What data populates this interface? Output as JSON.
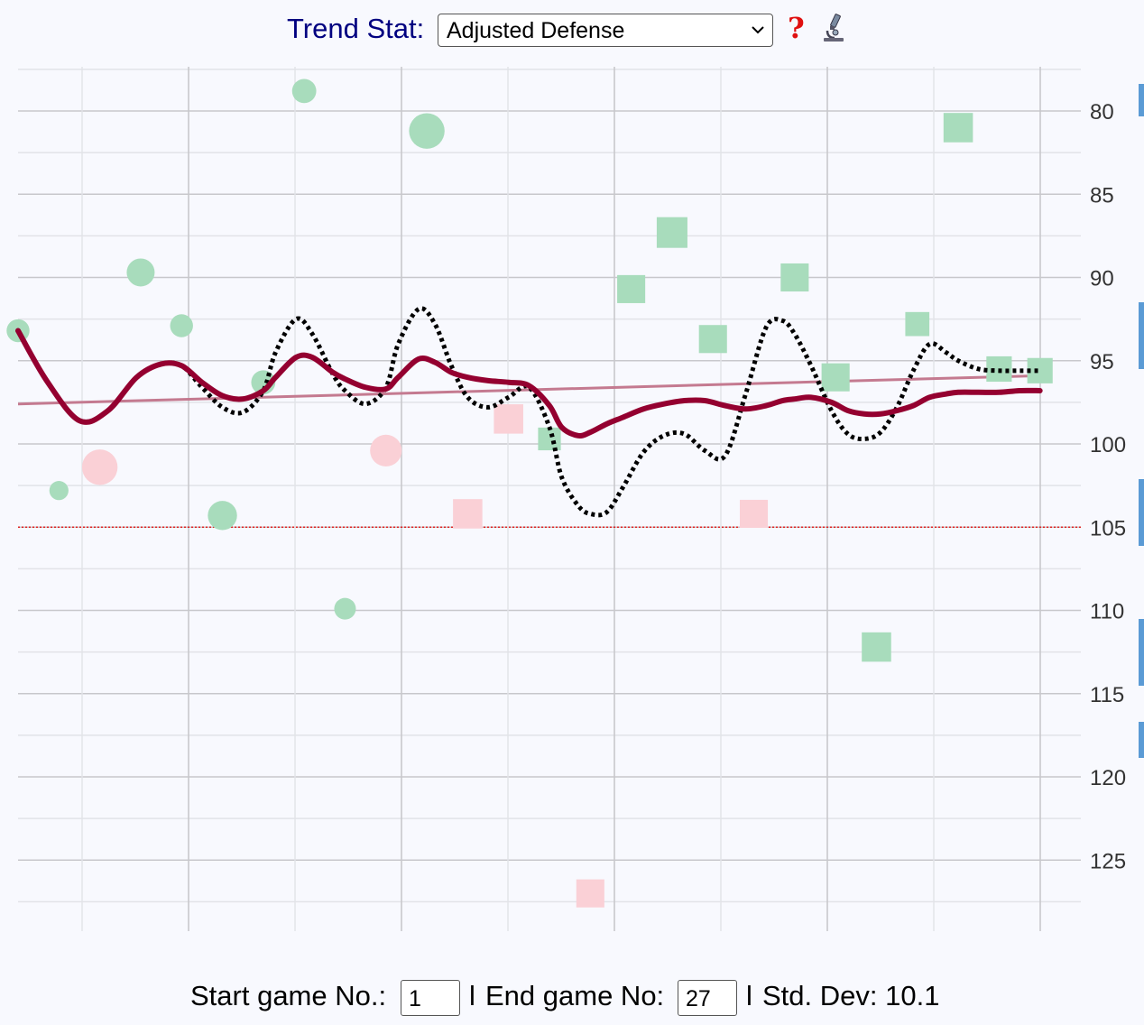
{
  "header": {
    "label": "Trend Stat:",
    "selected_stat": "Adjusted Defense",
    "help_icon": "question-mark-icon",
    "help_glyph": "?",
    "lab_icon": "microscope-icon"
  },
  "footer": {
    "start_label": "Start game No.:",
    "start_value": "1",
    "separator1": "l",
    "end_label": "End game No:",
    "end_value": "27",
    "separator2": "l",
    "stddev_label": "Std. Dev: 10.1"
  },
  "colors": {
    "win": "#a8dcbc",
    "loss": "#fad0d6",
    "trend_solid": "#940030",
    "trend_dotted": "#000000",
    "regression": "#c47a90",
    "reference_line": "#dd2222"
  },
  "chart_data": {
    "type": "scatter",
    "y_axis_inverted": true,
    "ylim": [
      77.5,
      129.5
    ],
    "y_ticks": [
      80,
      85,
      90,
      95,
      100,
      105,
      110,
      115,
      120,
      125
    ],
    "x_range": [
      1,
      27
    ],
    "reference_line_y": 105,
    "points": [
      {
        "game": 1,
        "value": 93.2,
        "shape": "circle",
        "result": "win",
        "size": 1.1
      },
      {
        "game": 2,
        "value": 102.8,
        "shape": "circle",
        "result": "win",
        "size": 0.8
      },
      {
        "game": 3,
        "value": 101.4,
        "shape": "circle",
        "result": "loss",
        "size": 2.1
      },
      {
        "game": 4,
        "value": 89.7,
        "shape": "circle",
        "result": "win",
        "size": 1.5
      },
      {
        "game": 5,
        "value": 92.9,
        "shape": "circle",
        "result": "win",
        "size": 1.1
      },
      {
        "game": 6,
        "value": 104.3,
        "shape": "circle",
        "result": "win",
        "size": 1.6
      },
      {
        "game": 7,
        "value": 96.3,
        "shape": "circle",
        "result": "win",
        "size": 1.2
      },
      {
        "game": 8,
        "value": 78.8,
        "shape": "circle",
        "result": "win",
        "size": 1.2
      },
      {
        "game": 9,
        "value": 109.9,
        "shape": "circle",
        "result": "win",
        "size": 1.0
      },
      {
        "game": 10,
        "value": 100.4,
        "shape": "circle",
        "result": "loss",
        "size": 1.8
      },
      {
        "game": 11,
        "value": 81.2,
        "shape": "circle",
        "result": "win",
        "size": 2.1
      },
      {
        "game": 12,
        "value": 104.2,
        "shape": "square",
        "result": "loss",
        "size": 1.5
      },
      {
        "game": 13,
        "value": 98.5,
        "shape": "square",
        "result": "loss",
        "size": 1.5
      },
      {
        "game": 14,
        "value": 99.7,
        "shape": "square",
        "result": "win",
        "size": 1.0
      },
      {
        "game": 15,
        "value": 127.0,
        "shape": "square",
        "result": "loss",
        "size": 1.4
      },
      {
        "game": 16,
        "value": 90.7,
        "shape": "square",
        "result": "win",
        "size": 1.4
      },
      {
        "game": 17,
        "value": 87.3,
        "shape": "square",
        "result": "win",
        "size": 1.6
      },
      {
        "game": 18,
        "value": 93.7,
        "shape": "square",
        "result": "win",
        "size": 1.4
      },
      {
        "game": 19,
        "value": 104.2,
        "shape": "square",
        "result": "loss",
        "size": 1.4
      },
      {
        "game": 20,
        "value": 90.0,
        "shape": "square",
        "result": "win",
        "size": 1.4
      },
      {
        "game": 21,
        "value": 96.0,
        "shape": "square",
        "result": "win",
        "size": 1.4
      },
      {
        "game": 22,
        "value": 112.2,
        "shape": "square",
        "result": "win",
        "size": 1.5
      },
      {
        "game": 23,
        "value": 92.8,
        "shape": "square",
        "result": "win",
        "size": 1.1
      },
      {
        "game": 24,
        "value": 81.0,
        "shape": "square",
        "result": "win",
        "size": 1.5
      },
      {
        "game": 25,
        "value": 95.5,
        "shape": "square",
        "result": "win",
        "size": 1.2
      },
      {
        "game": 26,
        "value": 95.6,
        "shape": "square",
        "result": "win",
        "size": 1.2
      }
    ],
    "series": [
      {
        "style": "dotted",
        "x": [
          1,
          1.7,
          2.5,
          3.2,
          3.9,
          4.5,
          5,
          5.5,
          6,
          6.5,
          7,
          7.3,
          7.8,
          8.2,
          8.7,
          9,
          9.5,
          10,
          10.3,
          10.8,
          11.2,
          11.6,
          12,
          12.5,
          13,
          13.5,
          14,
          14.3,
          14.7,
          15,
          15.4,
          15.8,
          16.3,
          16.8,
          17.3,
          17.8,
          18.3,
          18.8,
          19.3,
          19.7,
          20,
          20.4,
          20.9,
          21.3,
          21.7,
          22.1,
          22.5,
          22.9,
          23.3,
          23.7,
          24,
          24.5,
          25,
          25.5,
          26
        ],
        "y": [
          93.2,
          96.2,
          98.6,
          98.0,
          96.0,
          95.2,
          95.3,
          96.6,
          97.8,
          98.1,
          96.8,
          94.5,
          92.5,
          93.4,
          95.8,
          96.8,
          97.6,
          96.6,
          94.0,
          91.9,
          92.8,
          95.3,
          97.2,
          97.8,
          97.2,
          96.6,
          99.0,
          102.0,
          103.7,
          104.2,
          104.1,
          102.6,
          100.5,
          99.5,
          99.4,
          100.4,
          100.7,
          97.0,
          93.0,
          92.6,
          93.4,
          95.3,
          98.0,
          99.4,
          99.7,
          99.3,
          97.8,
          95.6,
          94.0,
          94.5,
          95.0,
          95.5,
          95.6,
          95.6,
          95.6
        ]
      },
      {
        "style": "solid",
        "x": [
          1,
          1.7,
          2.5,
          3.2,
          3.9,
          4.5,
          5,
          5.5,
          6,
          6.5,
          7,
          7.3,
          7.8,
          8.2,
          8.7,
          9,
          9.5,
          10,
          10.3,
          10.8,
          11.2,
          11.6,
          12,
          12.5,
          13,
          13.5,
          14,
          14.3,
          14.7,
          15,
          15.4,
          15.8,
          16.3,
          16.8,
          17.3,
          17.8,
          18.3,
          18.8,
          19.3,
          19.7,
          20,
          20.4,
          20.9,
          21.3,
          21.7,
          22.1,
          22.5,
          22.9,
          23.3,
          23.7,
          24,
          24.5,
          25,
          25.5,
          26
        ],
        "y": [
          93.2,
          96.2,
          98.6,
          98.0,
          96.0,
          95.2,
          95.3,
          96.3,
          97.1,
          97.3,
          96.8,
          96.0,
          94.8,
          94.8,
          95.7,
          96.1,
          96.6,
          96.7,
          96.0,
          94.9,
          95.1,
          95.7,
          96.0,
          96.2,
          96.3,
          96.5,
          97.7,
          99.0,
          99.5,
          99.3,
          98.8,
          98.4,
          97.9,
          97.6,
          97.4,
          97.4,
          97.7,
          97.9,
          97.7,
          97.4,
          97.3,
          97.2,
          97.5,
          98.0,
          98.2,
          98.2,
          98.0,
          97.7,
          97.2,
          97.0,
          96.9,
          96.9,
          96.9,
          96.8,
          96.8
        ]
      },
      {
        "style": "regression",
        "x": [
          1,
          26
        ],
        "y": [
          97.6,
          95.9
        ]
      }
    ]
  }
}
